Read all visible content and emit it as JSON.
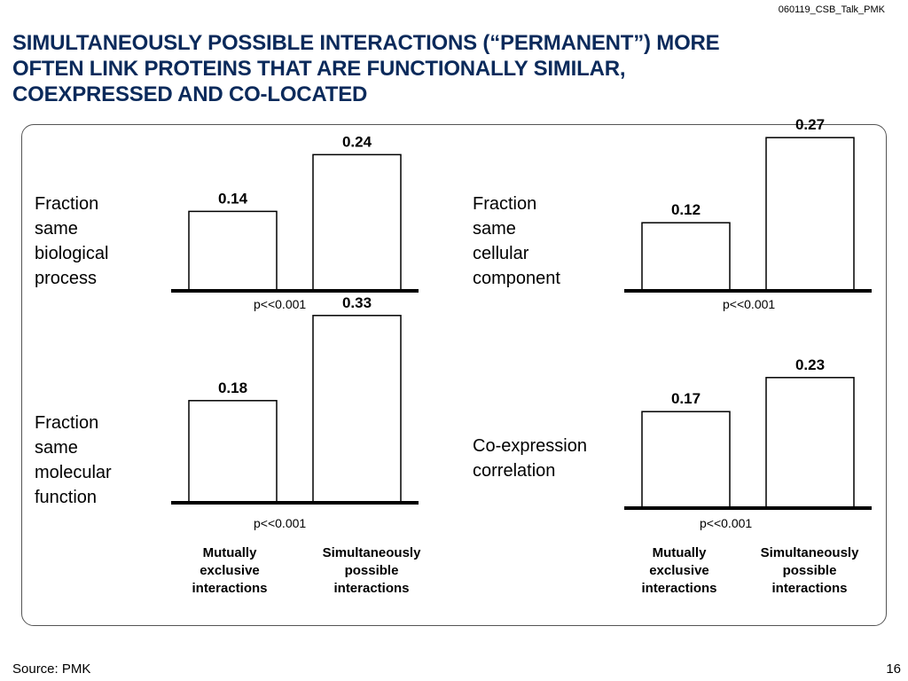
{
  "slide_id": "060119_CSB_Talk_PMK",
  "title_lines": [
    "SIMULTANEOUSLY POSSIBLE INTERACTIONS (“PERMANENT”) MORE",
    "OFTEN LINK PROTEINS THAT ARE FUNCTIONALLY SIMILAR,",
    "COEXPRESSED AND CO-LOCATED"
  ],
  "categories_lines": {
    "mutually_exclusive": [
      "Mutually",
      "exclusive",
      "interactions"
    ],
    "simultaneously_possible": [
      "Simultaneously",
      "possible",
      "interactions"
    ]
  },
  "panels": [
    {
      "label_lines": [
        "Fraction",
        "same",
        "biological",
        "process"
      ],
      "p_value": "p<<0.001"
    },
    {
      "label_lines": [
        "Fraction",
        "same",
        "cellular",
        "component"
      ],
      "p_value": "p<<0.001"
    },
    {
      "label_lines": [
        "Fraction",
        "same",
        "molecular",
        "function"
      ],
      "p_value": "p<<0.001"
    },
    {
      "label_lines": [
        "Co-expression",
        "correlation"
      ],
      "p_value": "p<<0.001"
    }
  ],
  "chart_data": [
    {
      "type": "bar",
      "categories": [
        "Mutually exclusive interactions",
        "Simultaneously possible interactions"
      ],
      "values": [
        0.14,
        0.24
      ],
      "labels": [
        "0.14",
        "0.24"
      ],
      "ylabel": "Fraction same biological process"
    },
    {
      "type": "bar",
      "categories": [
        "Mutually exclusive interactions",
        "Simultaneously possible interactions"
      ],
      "values": [
        0.12,
        0.27
      ],
      "labels": [
        "0.12",
        "0.27"
      ],
      "ylabel": "Fraction same cellular component"
    },
    {
      "type": "bar",
      "categories": [
        "Mutually exclusive interactions",
        "Simultaneously possible interactions"
      ],
      "values": [
        0.18,
        0.33
      ],
      "labels": [
        "0.18",
        "0.33"
      ],
      "ylabel": "Fraction same molecular function"
    },
    {
      "type": "bar",
      "categories": [
        "Mutually exclusive interactions",
        "Simultaneously possible interactions"
      ],
      "values": [
        0.17,
        0.23
      ],
      "labels": [
        "0.17",
        "0.23"
      ],
      "ylabel": "Co-expression correlation"
    }
  ],
  "footer": {
    "source": "Source: PMK",
    "page": "16"
  },
  "colors": {
    "title": "#0b2a5b",
    "bar_fill": "#ffffff",
    "bar_stroke": "#000000",
    "axis": "#000000"
  }
}
